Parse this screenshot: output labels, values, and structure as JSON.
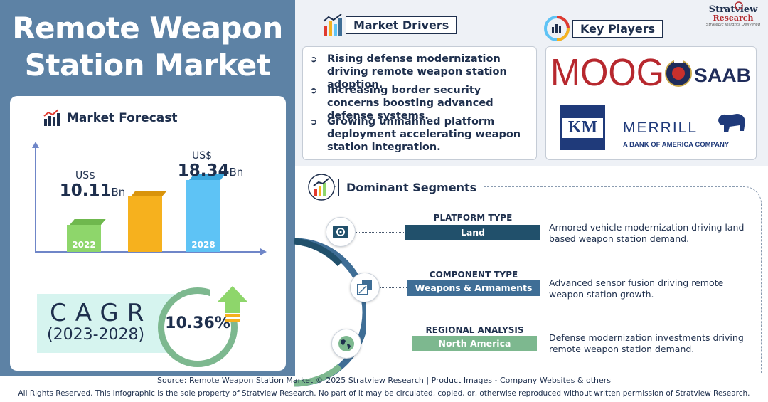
{
  "title": {
    "line1": "Remote Weapon",
    "line2": "Station Market"
  },
  "forecast": {
    "header": "Market Forecast",
    "bars": [
      {
        "year": "2022",
        "currency": "US$",
        "value": "10.11",
        "unit": "Bn",
        "color": "#8ed66b"
      },
      {
        "year": "",
        "color": "#f6b11e"
      },
      {
        "year": "2028",
        "currency": "US$",
        "value": "18.34",
        "unit": "Bn",
        "color": "#5ec3f5"
      }
    ]
  },
  "chart_data": {
    "type": "bar",
    "categories": [
      "2022",
      "",
      "2028"
    ],
    "values": [
      10.11,
      null,
      18.34
    ],
    "ylabel": "",
    "xlabel": ""
  },
  "cagr": {
    "label": "CAGR",
    "period": "(2023-2028)",
    "value": "10.36%"
  },
  "drivers": {
    "header": "Market Drivers",
    "items": [
      "Rising defense modernization driving remote weapon station adoption.",
      "Increasing border security concerns boosting advanced defense systems.",
      "Growing unmanned platform deployment accelerating weapon station integration."
    ]
  },
  "players": {
    "header": "Key Players",
    "logos": {
      "moog": "MOOG",
      "saab": "SAAB",
      "km": "KM",
      "merrill": "MERRILL",
      "merrill_sub": "A BANK OF AMERICA COMPANY"
    }
  },
  "brand": {
    "name": "Stratview",
    "sub": "Research",
    "tag": "Strategic Insights Delivered"
  },
  "segments": {
    "header": "Dominant Segments",
    "items": [
      {
        "title": "PLATFORM TYPE",
        "value": "Land",
        "color": "#21506b",
        "desc": "Armored vehicle modernization driving land-based weapon station demand."
      },
      {
        "title": "COMPONENT TYPE",
        "value": "Weapons & Armaments",
        "color": "#3f6e96",
        "desc": "Advanced sensor fusion driving remote weapon station growth."
      },
      {
        "title": "REGIONAL ANALYSIS",
        "value": "North America",
        "color": "#7db88f",
        "desc": "Defense modernization investments driving remote weapon station demand."
      }
    ]
  },
  "footer": {
    "source": "Source:  Remote Weapon Station Market © 2025 Stratview Research | Product Images  - Company Websites & others",
    "rights": "All Rights Reserved. This Infographic is the sole property of Stratview Research. No part of it may be circulated, copied, or, otherwise reproduced without written permission of Stratview Research."
  }
}
